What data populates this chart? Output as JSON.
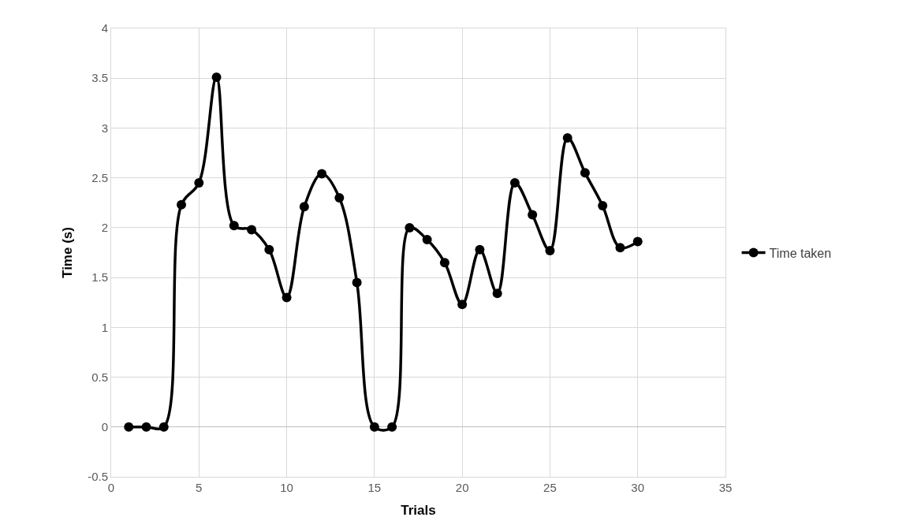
{
  "chart_data": {
    "type": "line",
    "xlabel": "Trials",
    "ylabel": "Time (s)",
    "x": [
      1,
      2,
      3,
      4,
      5,
      6,
      7,
      8,
      9,
      10,
      11,
      12,
      13,
      14,
      15,
      16,
      17,
      18,
      19,
      20,
      21,
      22,
      23,
      24,
      25,
      26,
      27,
      28,
      29,
      30
    ],
    "series": [
      {
        "name": "Time taken",
        "color": "#000000",
        "values": [
          0,
          0,
          0,
          2.23,
          2.45,
          3.51,
          2.02,
          1.98,
          1.78,
          1.3,
          2.21,
          2.54,
          2.3,
          1.45,
          0,
          0,
          2.0,
          1.88,
          1.65,
          1.23,
          1.78,
          1.34,
          2.45,
          2.13,
          1.77,
          2.9,
          2.55,
          2.22,
          1.8,
          1.86
        ]
      }
    ],
    "xlim": [
      0,
      35
    ],
    "xticks": [
      0,
      5,
      10,
      15,
      20,
      25,
      30,
      35
    ],
    "ylim": [
      -0.5,
      4
    ],
    "yticks": [
      -0.5,
      0,
      0.5,
      1,
      1.5,
      2,
      2.5,
      3,
      3.5,
      4
    ],
    "grid": true,
    "legend": "right",
    "marker": "circle",
    "line_style": "solid"
  }
}
